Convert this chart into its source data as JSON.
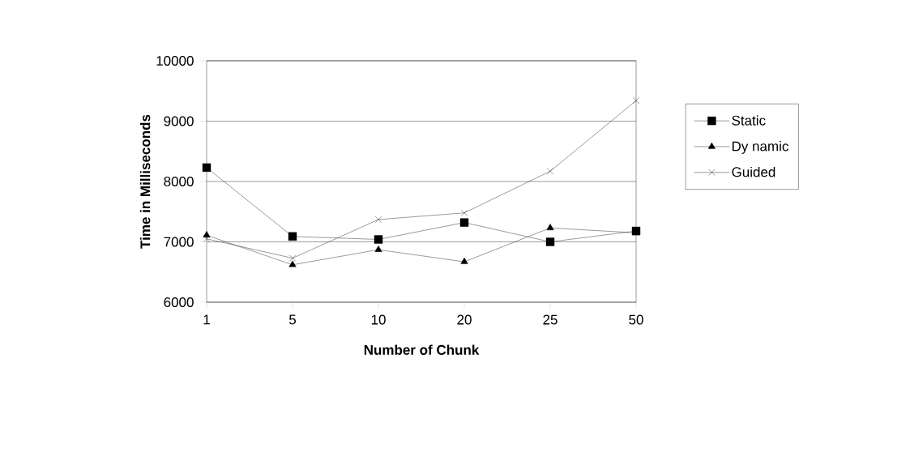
{
  "chart_data": {
    "type": "line",
    "xlabel": "Number of Chunk",
    "ylabel": "Time in Milliseconds",
    "categories": [
      "1",
      "5",
      "10",
      "20",
      "25",
      "50"
    ],
    "series": [
      {
        "name": "Static",
        "color": "#000000",
        "marker": "square",
        "values": [
          8230,
          7090,
          7040,
          7320,
          7000,
          7180
        ]
      },
      {
        "name": "Dy namic",
        "color": "#000000",
        "marker": "triangle",
        "values": [
          7110,
          6620,
          6870,
          6670,
          7230,
          7150
        ]
      },
      {
        "name": "Guided",
        "color": "#000000",
        "marker": "cross",
        "values": [
          7050,
          6730,
          7370,
          7480,
          8170,
          9340
        ]
      }
    ],
    "ylim": [
      6000,
      10000
    ],
    "yticks": [
      6000,
      7000,
      8000,
      9000,
      10000
    ],
    "grid": "y",
    "legend": "right"
  }
}
